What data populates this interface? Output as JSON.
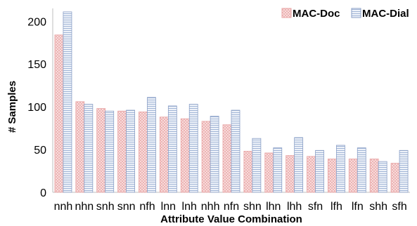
{
  "chart_data": {
    "type": "bar",
    "xlabel": "Attribute Value Combination",
    "ylabel": "# Samples",
    "ylim": [
      0,
      215
    ],
    "yticks": [
      0,
      50,
      100,
      150,
      200
    ],
    "grid": false,
    "legend_position": "top-right",
    "categories": [
      "nnh",
      "nhn",
      "snh",
      "snn",
      "nfh",
      "lnn",
      "lnh",
      "nhh",
      "nfn",
      "shn",
      "lhn",
      "lhh",
      "sfn",
      "lfh",
      "lfn",
      "shh",
      "sfh"
    ],
    "series": [
      {
        "name": "MAC-Doc",
        "color": "#e8a3a3",
        "fill": "#fbe3e3",
        "values": [
          184,
          106,
          98,
          95,
          94,
          88,
          86,
          83,
          79,
          48,
          46,
          43,
          42,
          39,
          39,
          39,
          34
        ]
      },
      {
        "name": "MAC-Dial",
        "color": "#8a9fc6",
        "fill": "#e4ebf6",
        "values": [
          211,
          103,
          95,
          96,
          111,
          101,
          103,
          89,
          96,
          63,
          52,
          64,
          49,
          55,
          52,
          36,
          49
        ]
      }
    ]
  }
}
